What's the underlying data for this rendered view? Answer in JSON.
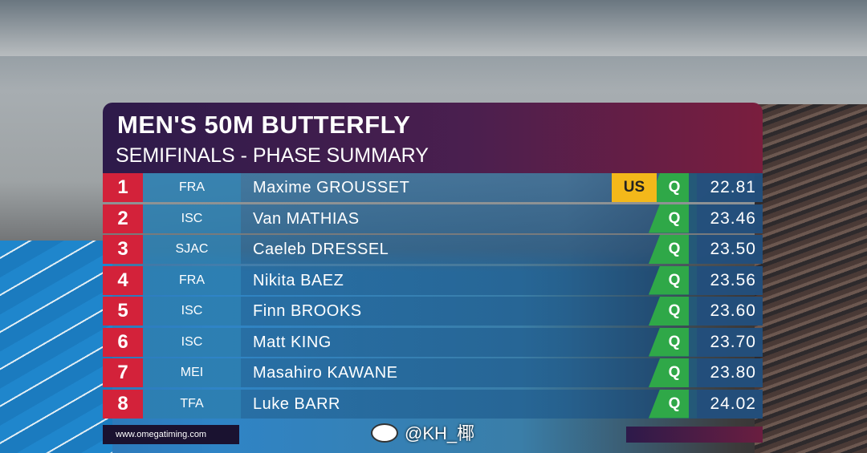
{
  "header": {
    "title": "MEN'S 50M BUTTERFLY",
    "subtitle": "SEMIFINALS - PHASE SUMMARY"
  },
  "table": {
    "rows": [
      {
        "rank": 1,
        "team": "FRA",
        "name": "Maxime GROUSSET",
        "record": "US",
        "qualifier": "Q",
        "time": "22.81"
      },
      {
        "rank": 2,
        "team": "ISC",
        "name": "Van MATHIAS",
        "qualifier": "Q",
        "time": "23.46"
      },
      {
        "rank": 3,
        "team": "SJAC",
        "name": "Caeleb DRESSEL",
        "qualifier": "Q",
        "time": "23.50"
      },
      {
        "rank": 4,
        "team": "FRA",
        "name": "Nikita BAEZ",
        "qualifier": "Q",
        "time": "23.56"
      },
      {
        "rank": 5,
        "team": "ISC",
        "name": "Finn BROOKS",
        "qualifier": "Q",
        "time": "23.60"
      },
      {
        "rank": 6,
        "team": "ISC",
        "name": "Matt KING",
        "qualifier": "Q",
        "time": "23.70"
      },
      {
        "rank": 7,
        "team": "MEI",
        "name": "Masahiro KAWANE",
        "qualifier": "Q",
        "time": "23.80"
      },
      {
        "rank": 8,
        "team": "TFA",
        "name": "Luke BARR",
        "qualifier": "Q",
        "time": "24.02"
      }
    ]
  },
  "footer": {
    "website": "www.omegatiming.com"
  },
  "watermark": "@KH_椰"
}
